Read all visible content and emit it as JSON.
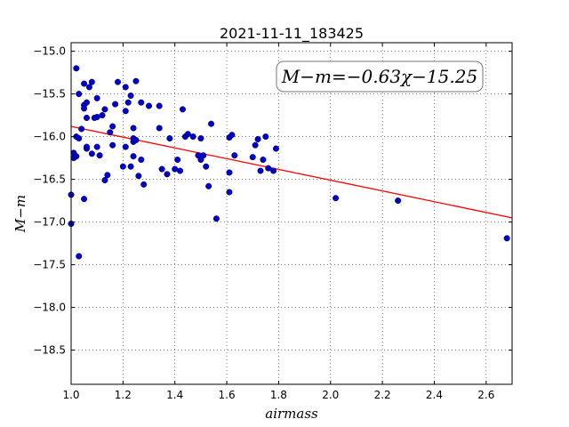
{
  "chart_data": {
    "type": "scatter",
    "title": "2021-11-11_183425",
    "xlabel": "airmass",
    "ylabel": "M−m",
    "xlim": [
      1.0,
      2.7
    ],
    "ylim": [
      -18.9,
      -14.9
    ],
    "x_ticks": [
      "1.0",
      "1.2",
      "1.4",
      "1.6",
      "1.8",
      "2.0",
      "2.2",
      "2.4",
      "2.6"
    ],
    "y_ticks": [
      "−15.0",
      "−15.5",
      "−16.0",
      "−16.5",
      "−17.0",
      "−17.5",
      "−18.0",
      "−18.5"
    ],
    "x_tick_values": [
      1.0,
      1.2,
      1.4,
      1.6,
      1.8,
      2.0,
      2.2,
      2.4,
      2.6
    ],
    "y_tick_values": [
      -15.0,
      -15.5,
      -16.0,
      -16.5,
      -17.0,
      -17.5,
      -18.0,
      -18.5
    ],
    "grid": true,
    "annotation": "M−m=−0.63χ−15.25",
    "fit": {
      "slope": -0.63,
      "intercept": -15.25,
      "color": "#ff0000"
    },
    "point_color": "#0000cc",
    "points": [
      [
        1.0,
        -16.68
      ],
      [
        1.0,
        -17.02
      ],
      [
        1.01,
        -16.19
      ],
      [
        1.01,
        -16.25
      ],
      [
        1.02,
        -16.0
      ],
      [
        1.02,
        -16.23
      ],
      [
        1.02,
        -15.2
      ],
      [
        1.03,
        -15.5
      ],
      [
        1.03,
        -16.02
      ],
      [
        1.03,
        -17.4
      ],
      [
        1.04,
        -15.91
      ],
      [
        1.05,
        -16.73
      ],
      [
        1.05,
        -15.38
      ],
      [
        1.05,
        -15.63
      ],
      [
        1.05,
        -15.67
      ],
      [
        1.06,
        -15.78
      ],
      [
        1.06,
        -16.14
      ],
      [
        1.06,
        -16.12
      ],
      [
        1.06,
        -15.6
      ],
      [
        1.07,
        -15.42
      ],
      [
        1.08,
        -15.36
      ],
      [
        1.08,
        -16.2
      ],
      [
        1.09,
        -15.78
      ],
      [
        1.1,
        -15.55
      ],
      [
        1.1,
        -16.12
      ],
      [
        1.1,
        -15.77
      ],
      [
        1.11,
        -16.22
      ],
      [
        1.12,
        -15.75
      ],
      [
        1.13,
        -16.51
      ],
      [
        1.13,
        -15.68
      ],
      [
        1.14,
        -16.45
      ],
      [
        1.15,
        -15.95
      ],
      [
        1.16,
        -16.1
      ],
      [
        1.16,
        -15.88
      ],
      [
        1.17,
        -15.62
      ],
      [
        1.18,
        -15.36
      ],
      [
        1.2,
        -16.35
      ],
      [
        1.21,
        -15.42
      ],
      [
        1.21,
        -16.12
      ],
      [
        1.21,
        -15.7
      ],
      [
        1.22,
        -15.6
      ],
      [
        1.23,
        -16.35
      ],
      [
        1.23,
        -15.52
      ],
      [
        1.24,
        -16.06
      ],
      [
        1.24,
        -16.02
      ],
      [
        1.24,
        -16.23
      ],
      [
        1.24,
        -15.9
      ],
      [
        1.25,
        -15.35
      ],
      [
        1.25,
        -16.04
      ],
      [
        1.26,
        -16.46
      ],
      [
        1.27,
        -16.27
      ],
      [
        1.27,
        -15.6
      ],
      [
        1.28,
        -16.56
      ],
      [
        1.3,
        -15.64
      ],
      [
        1.34,
        -15.64
      ],
      [
        1.34,
        -15.9
      ],
      [
        1.35,
        -16.38
      ],
      [
        1.37,
        -16.44
      ],
      [
        1.38,
        -16.02
      ],
      [
        1.4,
        -16.38
      ],
      [
        1.41,
        -16.27
      ],
      [
        1.42,
        -16.4
      ],
      [
        1.43,
        -15.68
      ],
      [
        1.44,
        -16.0
      ],
      [
        1.45,
        -15.97
      ],
      [
        1.47,
        -16.0
      ],
      [
        1.49,
        -16.22
      ],
      [
        1.5,
        -16.27
      ],
      [
        1.5,
        -16.02
      ],
      [
        1.51,
        -16.22
      ],
      [
        1.52,
        -16.35
      ],
      [
        1.53,
        -16.58
      ],
      [
        1.54,
        -15.85
      ],
      [
        1.56,
        -16.96
      ],
      [
        1.61,
        -16.01
      ],
      [
        1.61,
        -16.42
      ],
      [
        1.61,
        -16.65
      ],
      [
        1.62,
        -15.98
      ],
      [
        1.63,
        -16.22
      ],
      [
        1.7,
        -16.24
      ],
      [
        1.71,
        -16.1
      ],
      [
        1.72,
        -16.03
      ],
      [
        1.73,
        -16.4
      ],
      [
        1.74,
        -16.27
      ],
      [
        1.75,
        -16.0
      ],
      [
        1.76,
        -16.37
      ],
      [
        1.78,
        -16.4
      ],
      [
        1.79,
        -16.14
      ],
      [
        2.02,
        -16.72
      ],
      [
        2.26,
        -16.75
      ],
      [
        2.68,
        -17.19
      ]
    ]
  }
}
